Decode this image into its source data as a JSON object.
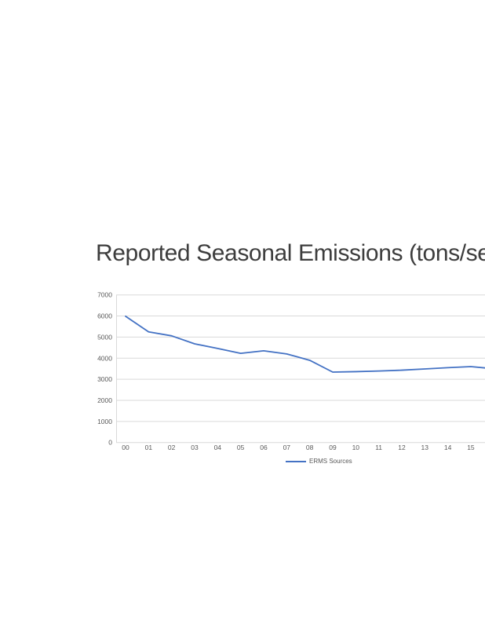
{
  "page": {
    "background_color": "#ffffff"
  },
  "chart": {
    "title": "Reported Seasonal Emissions (tons/season)",
    "legend_label": "ERMS Sources"
  },
  "chart_data": {
    "type": "line",
    "title": "Reported Seasonal Emissions (tons/season)",
    "categories": [
      "00",
      "01",
      "02",
      "03",
      "04",
      "05",
      "06",
      "07",
      "08",
      "09",
      "10",
      "11",
      "12",
      "13",
      "14",
      "15"
    ],
    "series": [
      {
        "name": "ERMS Sources",
        "color": "#4472c4",
        "values": [
          5990,
          5250,
          5060,
          4680,
          4460,
          4230,
          4350,
          4200,
          3900,
          3340,
          3360,
          3390,
          3430,
          3490,
          3550,
          3600
        ]
      }
    ],
    "extra_value_clipped_at_right": 3500,
    "xlabel": "",
    "ylabel": "",
    "ylim": [
      0,
      7000
    ],
    "ytick_step": 1000,
    "ytick_labels": [
      "0",
      "1000",
      "2000",
      "3000",
      "4000",
      "5000",
      "6000",
      "7000"
    ],
    "grid": "horizontal",
    "grid_color": "#d9d9d9",
    "axis_text_color": "#595959",
    "legend_position": "bottom-center",
    "right_edge_clipped": true
  }
}
